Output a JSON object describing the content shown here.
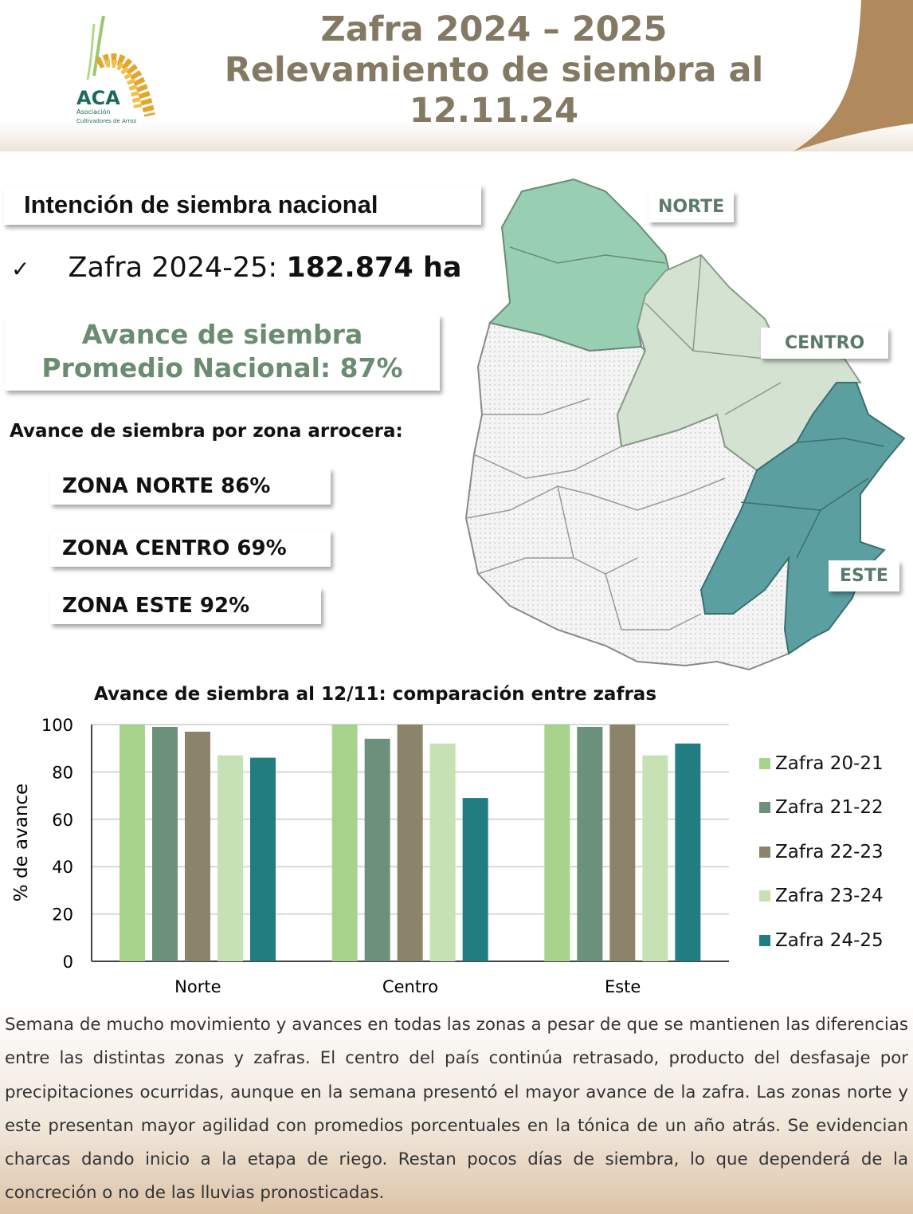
{
  "header": {
    "title_line1": "Zafra 2024 – 2025",
    "title_line2": "Relevamiento de siembra al",
    "title_line3": "12.11.24",
    "logo_text": "ACA",
    "logo_sub1": "Asociación",
    "logo_sub2": "Cultivadores de Arroz"
  },
  "intencion": {
    "heading": "Intención de siembra nacional",
    "check": "✓",
    "label": "Zafra 2024-25: ",
    "value": "182.874 ha"
  },
  "avance": {
    "line1": "Avance de siembra",
    "line2": "Promedio Nacional: 87%",
    "national_percent": 87
  },
  "zonas": {
    "heading": "Avance de siembra por zona arrocera:",
    "items": [
      "ZONA NORTE 86%",
      "ZONA CENTRO 69%",
      "ZONA ESTE 92%"
    ]
  },
  "map": {
    "labels": {
      "norte": "NORTE",
      "centro": "CENTRO",
      "este": "ESTE"
    },
    "colors": {
      "norte": "#98cfb2",
      "centro": "#d4e2d2",
      "este": "#5b9fa1"
    }
  },
  "chart_data": {
    "type": "bar",
    "title": "Avance de siembra al 12/11: comparación entre zafras",
    "xlabel": "",
    "ylabel": "% de avance",
    "ylim": [
      0,
      100
    ],
    "yticks": [
      0,
      20,
      40,
      60,
      80,
      100
    ],
    "grid": true,
    "legend": "right",
    "categories": [
      "Norte",
      "Centro",
      "Este"
    ],
    "series": [
      {
        "name": "Zafra 20-21",
        "color": "#a8d38d",
        "values": [
          100,
          100,
          100
        ]
      },
      {
        "name": "Zafra 21-22",
        "color": "#6b907b",
        "values": [
          99,
          94,
          99
        ]
      },
      {
        "name": "Zafra 22-23",
        "color": "#8c836b",
        "values": [
          97,
          100,
          100
        ]
      },
      {
        "name": "Zafra 23-24",
        "color": "#c6e2b4",
        "values": [
          87,
          92,
          87
        ]
      },
      {
        "name": "Zafra 24-25",
        "color": "#217d80",
        "values": [
          86,
          69,
          92
        ]
      }
    ]
  },
  "paragraph": "Semana de mucho movimiento y avances en todas las zonas a pesar de que se mantienen las diferencias entre las distintas zonas y zafras. El centro del país continúa retrasado, producto del desfasaje por precipitaciones ocurridas, aunque en la semana presentó el mayor avance de la zafra. Las zonas norte y este presentan mayor agilidad con promedios porcentuales en la tónica de un año atrás. Se evidencian charcas dando inicio a la etapa de riego. Restan pocos días de siembra, lo que dependerá de la concreción o no de las lluvias pronosticadas."
}
